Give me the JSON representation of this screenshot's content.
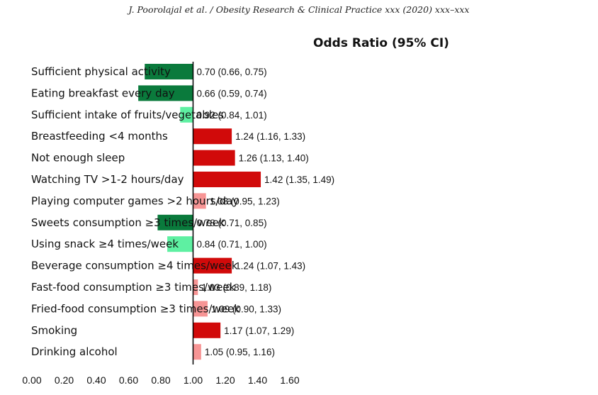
{
  "header": "J. Poorolajal et al. / Obesity Research & Clinical Practice xxx (2020) xxx–xxx",
  "chart_data": {
    "type": "bar",
    "orientation": "horizontal",
    "title": "Odds Ratio (95% CI)",
    "reference_value": 1.0,
    "xlim": [
      0.0,
      1.6
    ],
    "x_ticks": [
      "0.00",
      "0.20",
      "0.40",
      "0.60",
      "0.80",
      "1.00",
      "1.20",
      "1.40",
      "1.60"
    ],
    "grid": false,
    "categories": [
      "Sufficient physical activity",
      "Eating breakfast every day",
      "Sufficient intake of fruits/vegetables",
      "Breastfeeding <4 months",
      "Not enough sleep",
      "Watching TV >1-2 hours/day",
      "Playing computer games >2 hours/day",
      "Sweets consumption ≥3 times/week",
      "Using snack ≥4 times/week",
      "Beverage consumption ≥4 times/week",
      "Fast-food consumption ≥3 times/week",
      "Fried-food consumption ≥3 times/week",
      "Smoking",
      "Drinking alcohol"
    ],
    "values": [
      0.7,
      0.66,
      0.92,
      1.24,
      1.26,
      1.42,
      1.08,
      0.78,
      0.84,
      1.24,
      1.03,
      1.09,
      1.17,
      1.05
    ],
    "labels": [
      "0.70 (0.66, 0.75)",
      "0.66 (0.59, 0.74)",
      "0.92 (0.84, 1.01)",
      "1.24 (1.16, 1.33)",
      "1.26 (1.13, 1.40)",
      "1.42 (1.35, 1.49)",
      "1.08 (0.95, 1.23)",
      "0.78 (0.71, 0.85)",
      "0.84 (0.71, 1.00)",
      "1.24 (1.07, 1.43)",
      "1.03 (0.89, 1.18)",
      "1.09 (0.90, 1.33)",
      "1.17 (1.07, 1.29)",
      "1.05 (0.95, 1.16)"
    ],
    "colors": [
      "#0a7a3c",
      "#0a7a3c",
      "#5ef0a2",
      "#d10a0a",
      "#d10a0a",
      "#d10a0a",
      "#f79595",
      "#0a7a3c",
      "#5ef0a2",
      "#d10a0a",
      "#f79595",
      "#f79595",
      "#d10a0a",
      "#f79595"
    ]
  }
}
